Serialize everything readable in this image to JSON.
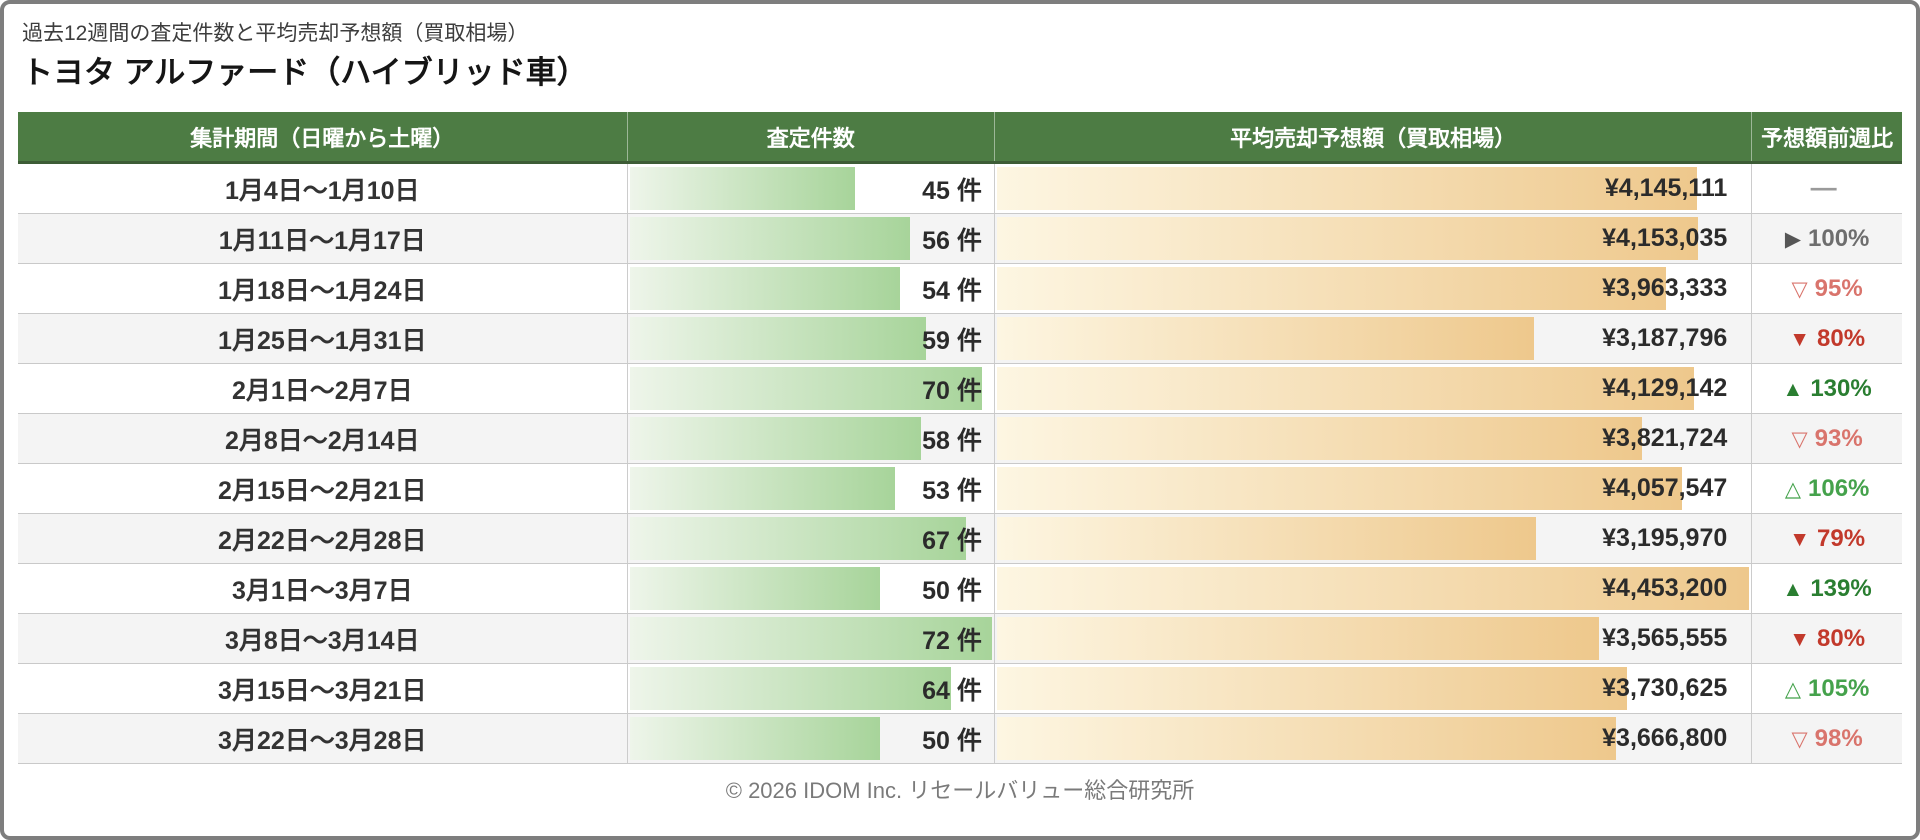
{
  "page": {
    "subtitle": "過去12週間の査定件数と平均売却予想額（買取相場）",
    "title": "トヨタ アルファード（ハイブリッド車）",
    "footer": "© 2026 IDOM Inc. リセールバリュー総合研究所"
  },
  "colors": {
    "header_bg": "#4d7c44",
    "header_border": "#3d5c36",
    "row_alt_bg": "#f4f4f4",
    "count_bar_gradient": [
      "#eef5ea",
      "#a7d49a"
    ],
    "price_bar_gradient": [
      "#fdf6e2",
      "#eec88c"
    ],
    "up_strong": "#2a7e31",
    "up_light": "#45a24c",
    "down_strong": "#c2392b",
    "down_light": "#d9746c",
    "flat_gray": "#6e6e6e",
    "dash_gray": "#9a9a9a"
  },
  "table": {
    "headers": [
      "集計期間（日曜から土曜）",
      "査定件数",
      "平均売却予想額（買取相場）",
      "予想額前週比"
    ],
    "count_unit": "件",
    "max_count": 72,
    "max_price_yen": 4453200,
    "rows": [
      {
        "period": "1月4日〜1月10日",
        "count": 45,
        "count_label": "45 件",
        "price_yen": 4145111,
        "price_label": "¥4,145,111",
        "change": {
          "type": "none",
          "symbol": "—",
          "value": ""
        }
      },
      {
        "period": "1月11日〜1月17日",
        "count": 56,
        "count_label": "56 件",
        "price_yen": 4153035,
        "price_label": "¥4,153,035",
        "change": {
          "type": "flat",
          "symbol": "▶",
          "value": "100%"
        }
      },
      {
        "period": "1月18日〜1月24日",
        "count": 54,
        "count_label": "54 件",
        "price_yen": 3963333,
        "price_label": "¥3,963,333",
        "change": {
          "type": "down-light",
          "symbol": "▽",
          "value": "95%"
        }
      },
      {
        "period": "1月25日〜1月31日",
        "count": 59,
        "count_label": "59 件",
        "price_yen": 3187796,
        "price_label": "¥3,187,796",
        "change": {
          "type": "down",
          "symbol": "▼",
          "value": "80%"
        }
      },
      {
        "period": "2月1日〜2月7日",
        "count": 70,
        "count_label": "70 件",
        "price_yen": 4129142,
        "price_label": "¥4,129,142",
        "change": {
          "type": "up",
          "symbol": "▲",
          "value": "130%"
        }
      },
      {
        "period": "2月8日〜2月14日",
        "count": 58,
        "count_label": "58 件",
        "price_yen": 3821724,
        "price_label": "¥3,821,724",
        "change": {
          "type": "down-light",
          "symbol": "▽",
          "value": "93%"
        }
      },
      {
        "period": "2月15日〜2月21日",
        "count": 53,
        "count_label": "53 件",
        "price_yen": 4057547,
        "price_label": "¥4,057,547",
        "change": {
          "type": "up-light",
          "symbol": "△",
          "value": "106%"
        }
      },
      {
        "period": "2月22日〜2月28日",
        "count": 67,
        "count_label": "67 件",
        "price_yen": 3195970,
        "price_label": "¥3,195,970",
        "change": {
          "type": "down",
          "symbol": "▼",
          "value": "79%"
        }
      },
      {
        "period": "3月1日〜3月7日",
        "count": 50,
        "count_label": "50 件",
        "price_yen": 4453200,
        "price_label": "¥4,453,200",
        "change": {
          "type": "up",
          "symbol": "▲",
          "value": "139%"
        }
      },
      {
        "period": "3月8日〜3月14日",
        "count": 72,
        "count_label": "72 件",
        "price_yen": 3565555,
        "price_label": "¥3,565,555",
        "change": {
          "type": "down",
          "symbol": "▼",
          "value": "80%"
        }
      },
      {
        "period": "3月15日〜3月21日",
        "count": 64,
        "count_label": "64 件",
        "price_yen": 3730625,
        "price_label": "¥3,730,625",
        "change": {
          "type": "up-light",
          "symbol": "△",
          "value": "105%"
        }
      },
      {
        "period": "3月22日〜3月28日",
        "count": 50,
        "count_label": "50 件",
        "price_yen": 3666800,
        "price_label": "¥3,666,800",
        "change": {
          "type": "down-light",
          "symbol": "▽",
          "value": "98%"
        }
      }
    ]
  },
  "chart_data": {
    "type": "table",
    "title": "トヨタ アルファード（ハイブリッド車）",
    "subtitle": "過去12週間の査定件数と平均売却予想額（買取相場）",
    "columns": [
      "集計期間（日曜から土曜）",
      "査定件数",
      "平均売却予想額（買取相場）",
      "予想額前週比"
    ],
    "bar_scale": {
      "count_max": 72,
      "price_max_yen": 4453200
    },
    "rows": [
      [
        "1月4日〜1月10日",
        45,
        4145111,
        null
      ],
      [
        "1月11日〜1月17日",
        56,
        4153035,
        "100%"
      ],
      [
        "1月18日〜1月24日",
        54,
        3963333,
        "95%"
      ],
      [
        "1月25日〜1月31日",
        59,
        3187796,
        "80%"
      ],
      [
        "2月1日〜2月7日",
        70,
        4129142,
        "130%"
      ],
      [
        "2月8日〜2月14日",
        58,
        3821724,
        "93%"
      ],
      [
        "2月15日〜2月21日",
        53,
        4057547,
        "106%"
      ],
      [
        "2月22日〜2月28日",
        67,
        3195970,
        "79%"
      ],
      [
        "3月1日〜3月7日",
        50,
        4453200,
        "139%"
      ],
      [
        "3月8日〜3月14日",
        72,
        3565555,
        "80%"
      ],
      [
        "3月15日〜3月21日",
        64,
        3730625,
        "105%"
      ],
      [
        "3月22日〜3月28日",
        50,
        3666800,
        "98%"
      ]
    ]
  }
}
